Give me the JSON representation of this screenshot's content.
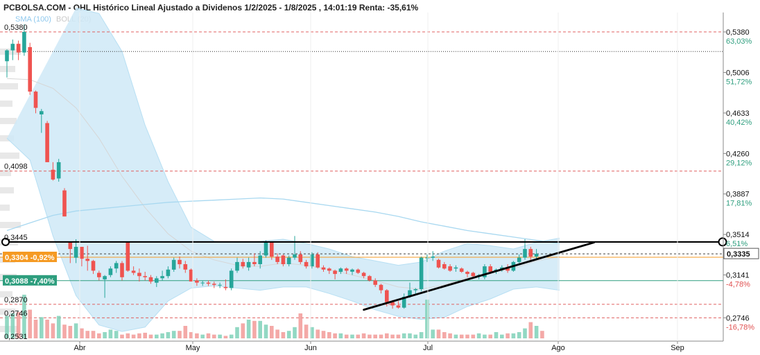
{
  "title": "PCBOLSA.COM - OHL Histórico Lineal Ajustado a Dividenos 1/2/2025 - 1/8/2025 , 14:01:19 Renta: -35,61%",
  "legend": {
    "sma": "SMA (100)",
    "boll": "BOLL (20)"
  },
  "colors": {
    "up": "#26a69a",
    "down": "#ef5350",
    "band": "#cfe9f7",
    "sma": "#a8d8f0",
    "mid": "#d6d6d6",
    "current": "#f59a23",
    "support": "#2e9e7e"
  },
  "chart_data": {
    "type": "candlestick",
    "title": "PCBOLSA.COM - OHL Histórico Lineal Ajustado a Dividenos 1/2/2025 - 1/8/2025 , 14:01:19 Renta: -35,61%",
    "x_tick_labels": [
      "Abr",
      "May",
      "Jun",
      "Jul",
      "Ago",
      "Sep"
    ],
    "ylim": [
      0.2531,
      0.5559
    ],
    "right_axis_ticks": [
      {
        "price": "0,5380",
        "pct": "63,03%",
        "value": 0.538
      },
      {
        "price": "0,5006",
        "pct": "51,72%",
        "value": 0.5006
      },
      {
        "price": "0,4633",
        "pct": "40,42%",
        "value": 0.4633
      },
      {
        "price": "0,4260",
        "pct": "29,12%",
        "value": 0.426
      },
      {
        "price": "0,3887",
        "pct": "17,81%",
        "value": 0.3887
      },
      {
        "price": "0,3514",
        "pct": "6,51%",
        "value": 0.3514
      },
      {
        "price": "0,3141",
        "pct": "-4,78%",
        "value": 0.3141
      },
      {
        "price": "0,2746",
        "pct": "-16,78%",
        "value": 0.2746
      }
    ],
    "current_price": {
      "label": "0,3335",
      "value": 0.3335
    },
    "left_labels": [
      {
        "text": "0,5380",
        "value": 0.538
      },
      {
        "text": "0,4098",
        "value": 0.4098
      },
      {
        "text": "0,3445",
        "value": 0.3445
      },
      {
        "text": "0,2870",
        "value": 0.287
      },
      {
        "text": "0,2746",
        "value": 0.2746
      },
      {
        "text": "0,2531",
        "value": 0.2531
      }
    ],
    "left_boxes": [
      {
        "text": "0,3304 -0,92%",
        "value": 0.3304
      },
      {
        "text": "0,3088 -7,40%",
        "value": 0.3088
      }
    ],
    "h_lines_red": [
      0.538,
      0.4098,
      0.287,
      0.2746
    ],
    "h_line_black_dotted": 0.52,
    "h_line_resistance": 0.3445,
    "h_line_support": 0.3088,
    "trendline": {
      "x_start": 62,
      "x_end": 102,
      "y_start": 0.282,
      "y_end": 0.344
    },
    "candles": [
      {
        "o": 0.511,
        "h": 0.522,
        "l": 0.496,
        "c": 0.521
      },
      {
        "o": 0.521,
        "h": 0.531,
        "l": 0.512,
        "c": 0.527
      },
      {
        "o": 0.527,
        "h": 0.53,
        "l": 0.512,
        "c": 0.519
      },
      {
        "o": 0.519,
        "h": 0.545,
        "l": 0.516,
        "c": 0.538
      },
      {
        "o": 0.524,
        "h": 0.528,
        "l": 0.48,
        "c": 0.483
      },
      {
        "o": 0.483,
        "h": 0.484,
        "l": 0.463,
        "c": 0.468
      },
      {
        "o": 0.462,
        "h": 0.467,
        "l": 0.445,
        "c": 0.465
      },
      {
        "o": 0.454,
        "h": 0.456,
        "l": 0.418,
        "c": 0.418
      },
      {
        "o": 0.411,
        "h": 0.418,
        "l": 0.401,
        "c": 0.402
      },
      {
        "o": 0.403,
        "h": 0.421,
        "l": 0.4,
        "c": 0.418
      },
      {
        "o": 0.392,
        "h": 0.394,
        "l": 0.368,
        "c": 0.368
      },
      {
        "o": 0.344,
        "h": 0.344,
        "l": 0.325,
        "c": 0.338
      },
      {
        "o": 0.33,
        "h": 0.347,
        "l": 0.325,
        "c": 0.34
      },
      {
        "o": 0.34,
        "h": 0.34,
        "l": 0.322,
        "c": 0.329
      },
      {
        "o": 0.329,
        "h": 0.341,
        "l": 0.318,
        "c": 0.327
      },
      {
        "o": 0.327,
        "h": 0.328,
        "l": 0.315,
        "c": 0.318
      },
      {
        "o": 0.316,
        "h": 0.318,
        "l": 0.309,
        "c": 0.312
      },
      {
        "o": 0.31,
        "h": 0.314,
        "l": 0.293,
        "c": 0.313
      },
      {
        "o": 0.314,
        "h": 0.322,
        "l": 0.312,
        "c": 0.32
      },
      {
        "o": 0.32,
        "h": 0.327,
        "l": 0.316,
        "c": 0.325
      },
      {
        "o": 0.325,
        "h": 0.327,
        "l": 0.309,
        "c": 0.312
      },
      {
        "o": 0.345,
        "h": 0.345,
        "l": 0.317,
        "c": 0.318
      },
      {
        "o": 0.318,
        "h": 0.322,
        "l": 0.314,
        "c": 0.316
      },
      {
        "o": 0.316,
        "h": 0.32,
        "l": 0.308,
        "c": 0.313
      },
      {
        "o": 0.313,
        "h": 0.317,
        "l": 0.309,
        "c": 0.312
      },
      {
        "o": 0.312,
        "h": 0.314,
        "l": 0.306,
        "c": 0.308
      },
      {
        "o": 0.307,
        "h": 0.313,
        "l": 0.303,
        "c": 0.311
      },
      {
        "o": 0.311,
        "h": 0.318,
        "l": 0.309,
        "c": 0.313
      },
      {
        "o": 0.313,
        "h": 0.322,
        "l": 0.311,
        "c": 0.319
      },
      {
        "o": 0.319,
        "h": 0.33,
        "l": 0.317,
        "c": 0.328
      },
      {
        "o": 0.328,
        "h": 0.331,
        "l": 0.32,
        "c": 0.324
      },
      {
        "o": 0.324,
        "h": 0.327,
        "l": 0.316,
        "c": 0.319
      },
      {
        "o": 0.319,
        "h": 0.32,
        "l": 0.308,
        "c": 0.308
      },
      {
        "o": 0.309,
        "h": 0.311,
        "l": 0.304,
        "c": 0.307
      },
      {
        "o": 0.307,
        "h": 0.309,
        "l": 0.304,
        "c": 0.307
      },
      {
        "o": 0.307,
        "h": 0.309,
        "l": 0.304,
        "c": 0.306
      },
      {
        "o": 0.306,
        "h": 0.308,
        "l": 0.302,
        "c": 0.305
      },
      {
        "o": 0.305,
        "h": 0.307,
        "l": 0.302,
        "c": 0.305
      },
      {
        "o": 0.303,
        "h": 0.31,
        "l": 0.3,
        "c": 0.302
      },
      {
        "o": 0.302,
        "h": 0.32,
        "l": 0.3,
        "c": 0.318
      },
      {
        "o": 0.318,
        "h": 0.33,
        "l": 0.316,
        "c": 0.326
      },
      {
        "o": 0.326,
        "h": 0.329,
        "l": 0.32,
        "c": 0.322
      },
      {
        "o": 0.321,
        "h": 0.33,
        "l": 0.318,
        "c": 0.326
      },
      {
        "o": 0.326,
        "h": 0.334,
        "l": 0.322,
        "c": 0.324
      },
      {
        "o": 0.324,
        "h": 0.336,
        "l": 0.32,
        "c": 0.332
      },
      {
        "o": 0.332,
        "h": 0.346,
        "l": 0.33,
        "c": 0.344
      },
      {
        "o": 0.344,
        "h": 0.345,
        "l": 0.328,
        "c": 0.331
      },
      {
        "o": 0.331,
        "h": 0.334,
        "l": 0.324,
        "c": 0.326
      },
      {
        "o": 0.332,
        "h": 0.333,
        "l": 0.322,
        "c": 0.324
      },
      {
        "o": 0.324,
        "h": 0.332,
        "l": 0.322,
        "c": 0.33
      },
      {
        "o": 0.33,
        "h": 0.35,
        "l": 0.328,
        "c": 0.333
      },
      {
        "o": 0.333,
        "h": 0.336,
        "l": 0.324,
        "c": 0.326
      },
      {
        "o": 0.326,
        "h": 0.328,
        "l": 0.32,
        "c": 0.322
      },
      {
        "o": 0.322,
        "h": 0.335,
        "l": 0.32,
        "c": 0.333
      },
      {
        "o": 0.333,
        "h": 0.335,
        "l": 0.32,
        "c": 0.321
      },
      {
        "o": 0.321,
        "h": 0.323,
        "l": 0.317,
        "c": 0.319
      },
      {
        "o": 0.32,
        "h": 0.321,
        "l": 0.315,
        "c": 0.318
      },
      {
        "o": 0.318,
        "h": 0.319,
        "l": 0.31,
        "c": 0.315
      },
      {
        "o": 0.317,
        "h": 0.321,
        "l": 0.315,
        "c": 0.32
      },
      {
        "o": 0.32,
        "h": 0.321,
        "l": 0.315,
        "c": 0.318
      },
      {
        "o": 0.317,
        "h": 0.32,
        "l": 0.314,
        "c": 0.319
      },
      {
        "o": 0.319,
        "h": 0.32,
        "l": 0.315,
        "c": 0.316
      },
      {
        "o": 0.316,
        "h": 0.317,
        "l": 0.311,
        "c": 0.313
      },
      {
        "o": 0.313,
        "h": 0.314,
        "l": 0.308,
        "c": 0.309
      },
      {
        "o": 0.309,
        "h": 0.311,
        "l": 0.303,
        "c": 0.305
      },
      {
        "o": 0.305,
        "h": 0.306,
        "l": 0.297,
        "c": 0.3
      },
      {
        "o": 0.3,
        "h": 0.301,
        "l": 0.285,
        "c": 0.289
      },
      {
        "o": 0.289,
        "h": 0.291,
        "l": 0.283,
        "c": 0.286
      },
      {
        "o": 0.286,
        "h": 0.29,
        "l": 0.283,
        "c": 0.284
      },
      {
        "o": 0.284,
        "h": 0.297,
        "l": 0.283,
        "c": 0.294
      },
      {
        "o": 0.294,
        "h": 0.307,
        "l": 0.293,
        "c": 0.3
      },
      {
        "o": 0.3,
        "h": 0.302,
        "l": 0.296,
        "c": 0.301
      },
      {
        "o": 0.301,
        "h": 0.331,
        "l": 0.299,
        "c": 0.33
      },
      {
        "o": 0.33,
        "h": 0.333,
        "l": 0.326,
        "c": 0.33
      },
      {
        "o": 0.33,
        "h": 0.336,
        "l": 0.327,
        "c": 0.331
      },
      {
        "o": 0.328,
        "h": 0.329,
        "l": 0.32,
        "c": 0.321
      },
      {
        "o": 0.324,
        "h": 0.326,
        "l": 0.319,
        "c": 0.32
      },
      {
        "o": 0.322,
        "h": 0.324,
        "l": 0.317,
        "c": 0.318
      },
      {
        "o": 0.32,
        "h": 0.323,
        "l": 0.317,
        "c": 0.321
      },
      {
        "o": 0.32,
        "h": 0.321,
        "l": 0.316,
        "c": 0.317
      },
      {
        "o": 0.317,
        "h": 0.318,
        "l": 0.312,
        "c": 0.315
      },
      {
        "o": 0.316,
        "h": 0.317,
        "l": 0.312,
        "c": 0.313
      },
      {
        "o": 0.313,
        "h": 0.315,
        "l": 0.31,
        "c": 0.314
      },
      {
        "o": 0.312,
        "h": 0.324,
        "l": 0.31,
        "c": 0.322
      },
      {
        "o": 0.322,
        "h": 0.324,
        "l": 0.315,
        "c": 0.317
      },
      {
        "o": 0.317,
        "h": 0.32,
        "l": 0.315,
        "c": 0.319
      },
      {
        "o": 0.319,
        "h": 0.323,
        "l": 0.317,
        "c": 0.321
      },
      {
        "o": 0.321,
        "h": 0.324,
        "l": 0.316,
        "c": 0.318
      },
      {
        "o": 0.318,
        "h": 0.327,
        "l": 0.317,
        "c": 0.326
      },
      {
        "o": 0.326,
        "h": 0.333,
        "l": 0.324,
        "c": 0.33
      },
      {
        "o": 0.33,
        "h": 0.347,
        "l": 0.328,
        "c": 0.338
      },
      {
        "o": 0.338,
        "h": 0.34,
        "l": 0.328,
        "c": 0.331
      },
      {
        "o": 0.331,
        "h": 0.338,
        "l": 0.329,
        "c": 0.3335
      }
    ],
    "volume": [
      36,
      40,
      42,
      70,
      46,
      30,
      34,
      30,
      24,
      36,
      22,
      20,
      24,
      16,
      12,
      12,
      8,
      10,
      14,
      12,
      6,
      8,
      6,
      8,
      9,
      6,
      6,
      8,
      10,
      12,
      12,
      20,
      10,
      8,
      6,
      8,
      6,
      6,
      4,
      6,
      18,
      24,
      30,
      28,
      28,
      22,
      20,
      14,
      10,
      12,
      18,
      40,
      22,
      18,
      14,
      12,
      10,
      8,
      8,
      6,
      6,
      6,
      8,
      6,
      6,
      6,
      8,
      6,
      6,
      8,
      8,
      6,
      10,
      62,
      14,
      14,
      10,
      8,
      6,
      6,
      6,
      6,
      8,
      6,
      6,
      10,
      6,
      8,
      8,
      10,
      16,
      26,
      20,
      12
    ],
    "sma100": [
      [
        0,
        0.355
      ],
      [
        4,
        0.362
      ],
      [
        8,
        0.369
      ],
      [
        12,
        0.373
      ],
      [
        16,
        0.375
      ],
      [
        20,
        0.377
      ],
      [
        24,
        0.379
      ],
      [
        28,
        0.381
      ],
      [
        32,
        0.382
      ],
      [
        36,
        0.383
      ],
      [
        40,
        0.384
      ],
      [
        44,
        0.385
      ],
      [
        48,
        0.384
      ],
      [
        52,
        0.381
      ],
      [
        56,
        0.378
      ],
      [
        60,
        0.375
      ],
      [
        64,
        0.372
      ],
      [
        68,
        0.368
      ],
      [
        72,
        0.363
      ],
      [
        76,
        0.359
      ],
      [
        80,
        0.355
      ],
      [
        84,
        0.352
      ],
      [
        88,
        0.349
      ],
      [
        92,
        0.346
      ],
      [
        96,
        0.343
      ]
    ],
    "boll_mid": [
      [
        0,
        0.495
      ],
      [
        4,
        0.494
      ],
      [
        8,
        0.486
      ],
      [
        12,
        0.468
      ],
      [
        16,
        0.44
      ],
      [
        20,
        0.405
      ],
      [
        24,
        0.376
      ],
      [
        28,
        0.352
      ],
      [
        32,
        0.336
      ],
      [
        36,
        0.328
      ],
      [
        40,
        0.323
      ],
      [
        44,
        0.322
      ],
      [
        48,
        0.325
      ],
      [
        52,
        0.323
      ],
      [
        56,
        0.319
      ],
      [
        60,
        0.314
      ],
      [
        64,
        0.309
      ],
      [
        68,
        0.303
      ],
      [
        72,
        0.301
      ],
      [
        76,
        0.305
      ],
      [
        80,
        0.312
      ],
      [
        84,
        0.316
      ],
      [
        88,
        0.32
      ],
      [
        92,
        0.327
      ],
      [
        96,
        0.331
      ]
    ],
    "boll_upper": [
      [
        12,
        0.56
      ],
      [
        16,
        0.555
      ],
      [
        20,
        0.52
      ],
      [
        24,
        0.452
      ],
      [
        28,
        0.4
      ],
      [
        32,
        0.358
      ],
      [
        36,
        0.345
      ],
      [
        40,
        0.344
      ],
      [
        44,
        0.345
      ],
      [
        48,
        0.347
      ],
      [
        52,
        0.343
      ],
      [
        56,
        0.338
      ],
      [
        60,
        0.331
      ],
      [
        64,
        0.327
      ],
      [
        68,
        0.323
      ],
      [
        72,
        0.326
      ],
      [
        76,
        0.336
      ],
      [
        80,
        0.343
      ],
      [
        84,
        0.341
      ],
      [
        88,
        0.338
      ],
      [
        92,
        0.344
      ],
      [
        96,
        0.348
      ]
    ],
    "boll_lower": [
      [
        0,
        0.44
      ],
      [
        4,
        0.42
      ],
      [
        8,
        0.35
      ],
      [
        12,
        0.295
      ],
      [
        16,
        0.268
      ],
      [
        20,
        0.262
      ],
      [
        24,
        0.266
      ],
      [
        28,
        0.29
      ],
      [
        32,
        0.302
      ],
      [
        36,
        0.304
      ],
      [
        40,
        0.302
      ],
      [
        44,
        0.3
      ],
      [
        48,
        0.303
      ],
      [
        52,
        0.303
      ],
      [
        56,
        0.297
      ],
      [
        60,
        0.29
      ],
      [
        64,
        0.282
      ],
      [
        68,
        0.276
      ],
      [
        72,
        0.273
      ],
      [
        76,
        0.275
      ],
      [
        80,
        0.285
      ],
      [
        84,
        0.292
      ],
      [
        88,
        0.301
      ],
      [
        92,
        0.303
      ],
      [
        96,
        0.3
      ]
    ]
  }
}
